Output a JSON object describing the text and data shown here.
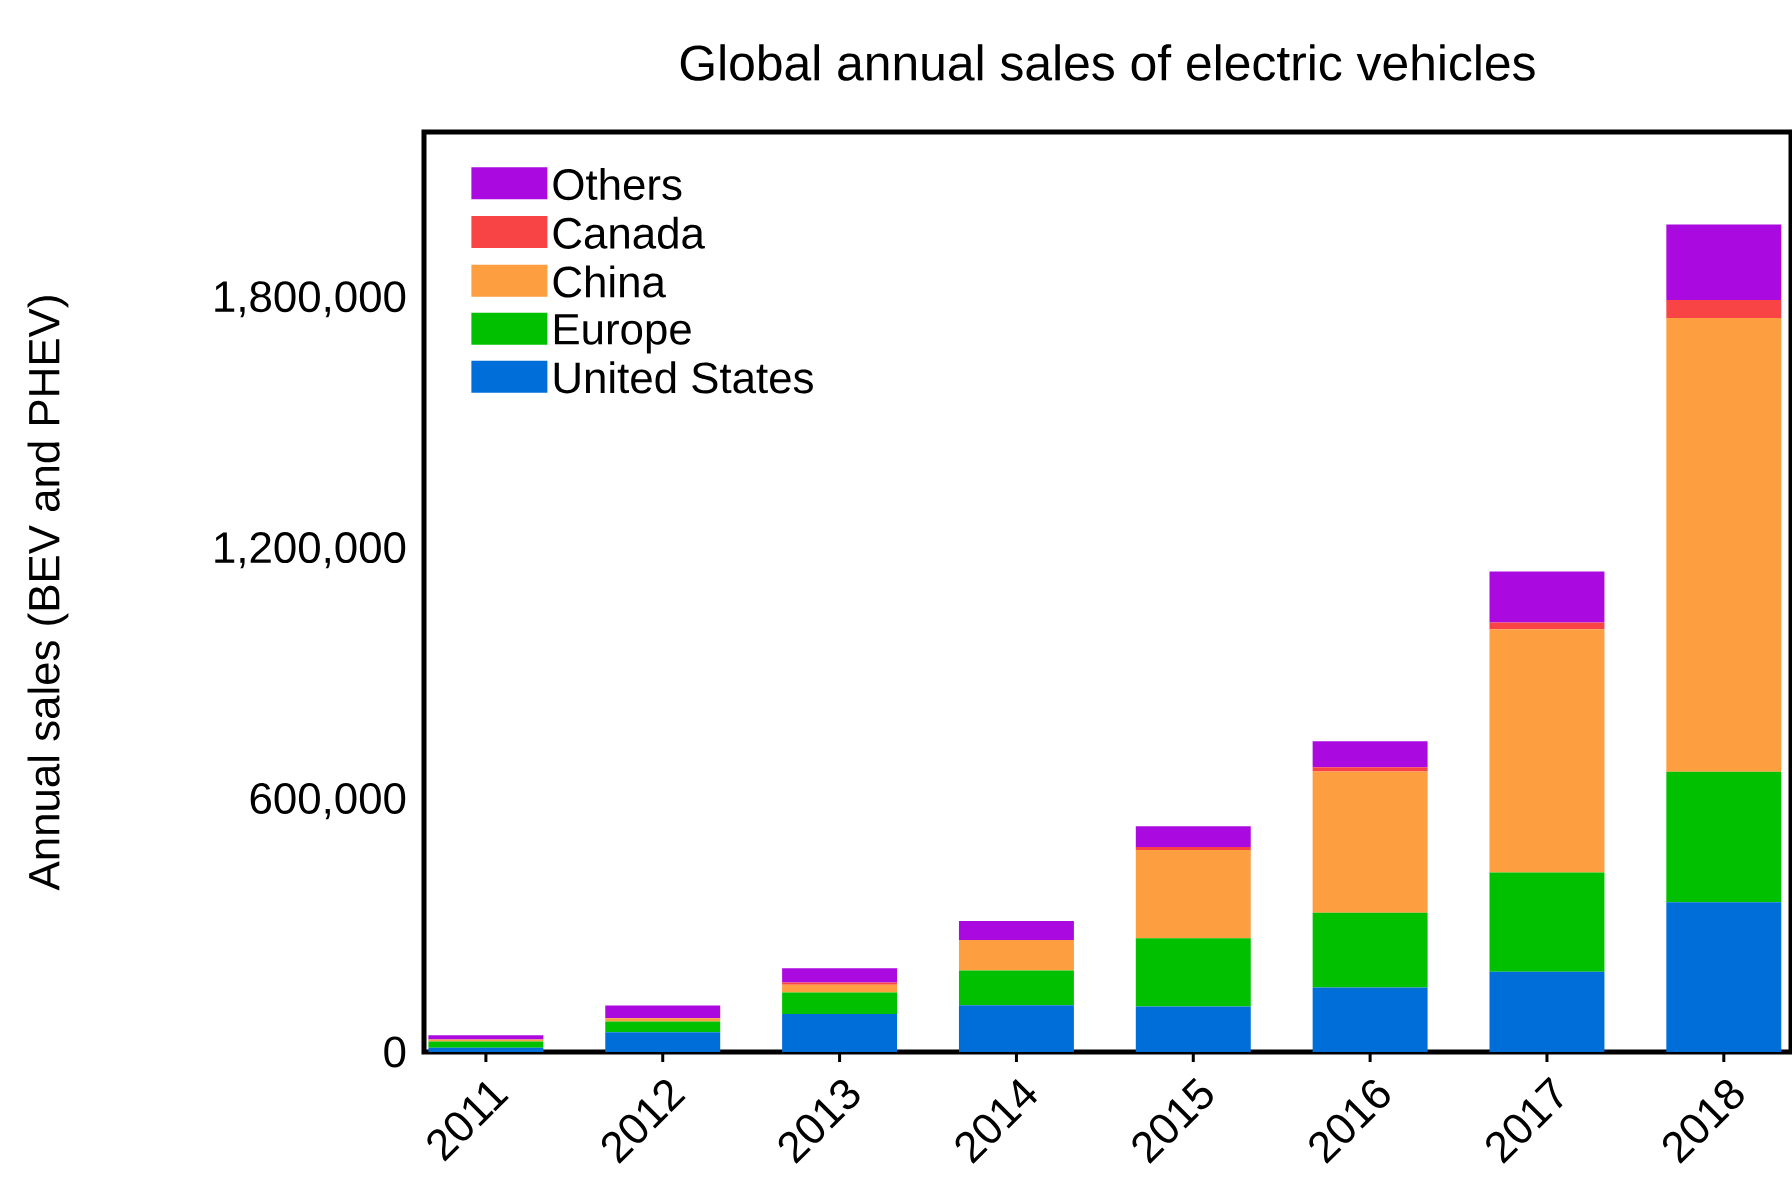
{
  "chart_data": {
    "type": "bar",
    "stacked": true,
    "title": "Global annual sales of electric vehicles",
    "ylabel": "Annual sales (BEV and PHEV)",
    "categories": [
      "2011",
      "2012",
      "2013",
      "2014",
      "2015",
      "2016",
      "2017",
      "2018"
    ],
    "series": [
      {
        "name": "United States",
        "color": "#006ed8",
        "values": [
          10000,
          47000,
          91000,
          112000,
          109000,
          154000,
          192000,
          358000
        ]
      },
      {
        "name": "Europe",
        "color": "#00c000",
        "values": [
          15000,
          26000,
          51000,
          83000,
          163000,
          179000,
          237000,
          312000
        ]
      },
      {
        "name": "China",
        "color": "#fd9e40",
        "values": [
          5000,
          8000,
          19000,
          73000,
          211000,
          338000,
          582000,
          1085000
        ]
      },
      {
        "name": "Canada",
        "color": "#f84444",
        "values": [
          null,
          null,
          5000,
          null,
          7000,
          10000,
          16000,
          43000
        ]
      },
      {
        "name": "Others",
        "color": "#aa0ae0",
        "values": [
          10000,
          30000,
          34000,
          45000,
          50000,
          62000,
          122000,
          181000
        ]
      }
    ],
    "ylim": [
      0,
      2200000
    ],
    "yticks": [
      0,
      {
        "value": 600000,
        "label": "600,000"
      },
      {
        "value": 1200000,
        "label": "1,200,000"
      },
      {
        "value": 1800000,
        "label": "1,800,000"
      }
    ],
    "legend": "top left"
  }
}
